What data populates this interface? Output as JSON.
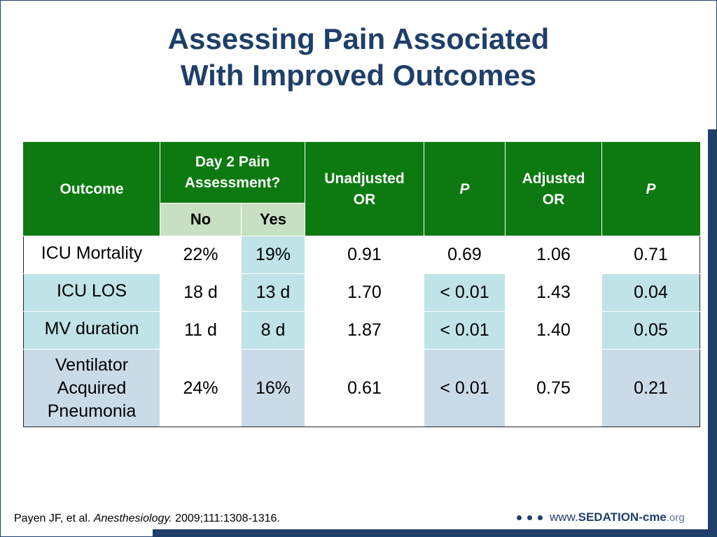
{
  "slide": {
    "title_line1": "Assessing Pain Associated",
    "title_line2": "With Improved Outcomes"
  },
  "table": {
    "headers": {
      "outcome": "Outcome",
      "day2": "Day 2 Pain Assessment?",
      "no": "No",
      "yes": "Yes",
      "unadjusted_or": "Unadjusted OR",
      "p1": "P",
      "adjusted_or": "Adjusted OR",
      "p2": "P"
    },
    "rows": [
      {
        "outcome": "ICU Mortality",
        "no": "22%",
        "yes": "19%",
        "unadj_or": "0.91",
        "p1": "0.69",
        "adj_or": "1.06",
        "p2": "0.71"
      },
      {
        "outcome": "ICU LOS",
        "no": "18 d",
        "yes": "13 d",
        "unadj_or": "1.70",
        "p1": "< 0.01",
        "adj_or": "1.43",
        "p2": "0.04"
      },
      {
        "outcome": "MV duration",
        "no": "11 d",
        "yes": "8 d",
        "unadj_or": "1.87",
        "p1": "< 0.01",
        "adj_or": "1.40",
        "p2": "0.05"
      },
      {
        "outcome": "Ventilator Acquired Pneumonia",
        "no": "24%",
        "yes": "16%",
        "unadj_or": "0.61",
        "p1": "< 0.01",
        "adj_or": "0.75",
        "p2": "0.21"
      }
    ]
  },
  "footer": {
    "citation_authors": "Payen JF, et al.",
    "citation_journal": "Anesthesiology.",
    "citation_ref": "2009;111:1308-1316.",
    "logo_www": "www.",
    "logo_brand": "SEDATION",
    "logo_cme": "-cme",
    "logo_org": ".org"
  },
  "colors": {
    "title": "#1f3f6a",
    "header_green": "#0c7a10",
    "subheader_green": "#c8e0c2",
    "highlight_teal": "#bfe3e6",
    "highlight_blue": "#cadbe8"
  }
}
